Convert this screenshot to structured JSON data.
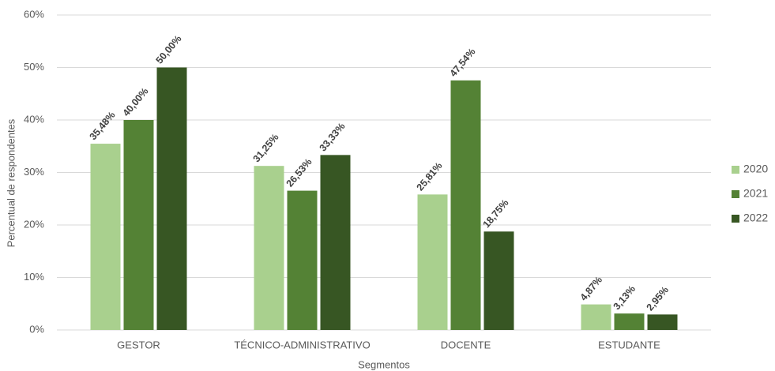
{
  "chart_data": {
    "type": "bar",
    "categories": [
      "GESTOR",
      "TÉCNICO-ADMINISTRATIVO",
      "DOCENTE",
      "ESTUDANTE"
    ],
    "series": [
      {
        "name": "2020",
        "color": "#a9d08e",
        "values": [
          35.48,
          31.25,
          25.81,
          4.87
        ],
        "value_labels": [
          "35,48%",
          "31,25%",
          "25,81%",
          "4,87%"
        ]
      },
      {
        "name": "2021",
        "color": "#548235",
        "values": [
          40.0,
          26.53,
          47.54,
          3.13
        ],
        "value_labels": [
          "40,00%",
          "26,53%",
          "47,54%",
          "3,13%"
        ]
      },
      {
        "name": "2022",
        "color": "#375623",
        "values": [
          50.0,
          33.33,
          18.75,
          2.95
        ],
        "value_labels": [
          "50,00%",
          "33,33%",
          "18,75%",
          "2,95%"
        ]
      }
    ],
    "ylabel": "Percentual de respondentes",
    "xlabel": "Segmentos",
    "ylim": [
      0,
      60
    ],
    "yticks": [
      {
        "value": 0,
        "label": "0%"
      },
      {
        "value": 10,
        "label": "10%"
      },
      {
        "value": 20,
        "label": "20%"
      },
      {
        "value": 30,
        "label": "30%"
      },
      {
        "value": 40,
        "label": "40%"
      },
      {
        "value": 50,
        "label": "50%"
      },
      {
        "value": 60,
        "label": "60%"
      }
    ],
    "grid": true,
    "legend": "right"
  }
}
